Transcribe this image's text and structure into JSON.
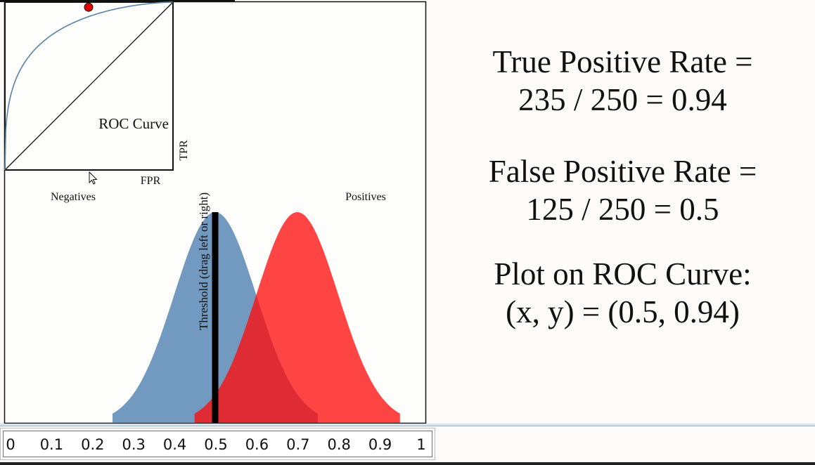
{
  "roc_panel": {
    "title": "ROC Curve",
    "x_label": "FPR",
    "y_label": "TPR",
    "curve_color": "#5a83a8",
    "operating_point": {
      "fpr": 0.5,
      "tpr": 0.94,
      "color": "#e00000"
    }
  },
  "distributions": {
    "negatives_label": "Negatives",
    "positives_label": "Positives",
    "negatives_color": "#7299bf",
    "positives_color": "#ff3a3a",
    "overlap_color": "#de2b34",
    "threshold_label": "Threshold (drag left or right)",
    "threshold_value": 0.5,
    "negatives_mean": 0.5,
    "positives_mean": 0.7,
    "std_dev": 0.1
  },
  "stats": {
    "tpr_line1": "True Positive Rate =",
    "tpr_line2": "235 / 250 = 0.94",
    "fpr_line1": "False Positive Rate =",
    "fpr_line2": "125 / 250 = 0.5",
    "plot_line1": "Plot on ROC Curve:",
    "plot_line2": "(x, y) = (0.5, 0.94)"
  },
  "axis_ticks": [
    "0",
    "0.1",
    "0.2",
    "0.3",
    "0.4",
    "0.5",
    "0.6",
    "0.7",
    "0.8",
    "0.9",
    "1"
  ]
}
